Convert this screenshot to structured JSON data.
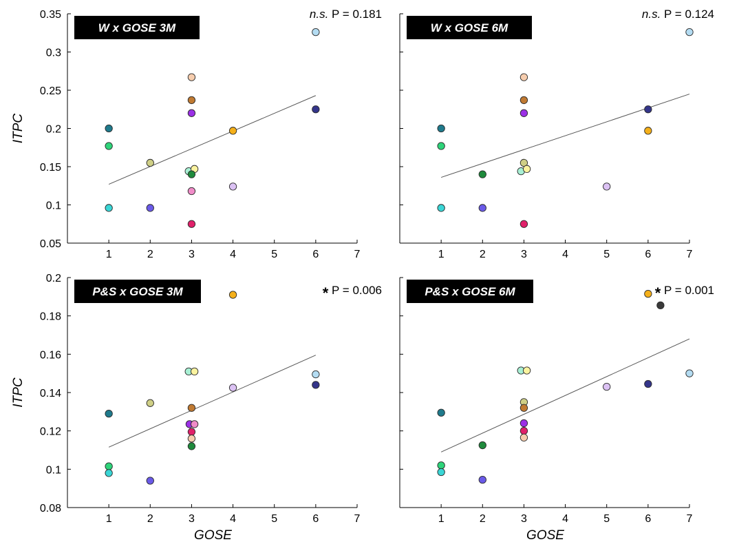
{
  "chart_data": [
    {
      "type": "scatter",
      "title": "W x GOSE 3M",
      "ylabel": "ITPC",
      "xlabel": "",
      "annotation": {
        "prefix": "n.s.",
        "text": "P = 0.181"
      },
      "xlim": [
        0,
        7
      ],
      "ylim": [
        0.05,
        0.35
      ],
      "x_ticks": [
        1,
        2,
        3,
        4,
        5,
        6,
        7
      ],
      "y_ticks": [
        0.05,
        0.1,
        0.15,
        0.2,
        0.25,
        0.3,
        0.35
      ],
      "y_tick_labels": [
        "0.05",
        "0.1",
        "0.15",
        "0.2",
        "0.25",
        "0.3",
        "0.35"
      ],
      "points": [
        {
          "x": 1,
          "y": 0.2,
          "color": "#1f7a8c"
        },
        {
          "x": 1,
          "y": 0.177,
          "color": "#2ed47a"
        },
        {
          "x": 1,
          "y": 0.096,
          "color": "#3ad6d6"
        },
        {
          "x": 2,
          "y": 0.155,
          "color": "#cfcf86"
        },
        {
          "x": 2,
          "y": 0.096,
          "color": "#6a5ae8"
        },
        {
          "x": 3,
          "y": 0.267,
          "color": "#f6cdae"
        },
        {
          "x": 3,
          "y": 0.237,
          "color": "#c07a32"
        },
        {
          "x": 3,
          "y": 0.22,
          "color": "#9b30e6"
        },
        {
          "x": 2.93,
          "y": 0.144,
          "color": "#a8f0d4"
        },
        {
          "x": 3.07,
          "y": 0.147,
          "color": "#fbf3a0"
        },
        {
          "x": 3,
          "y": 0.14,
          "color": "#1f8a3c"
        },
        {
          "x": 3,
          "y": 0.118,
          "color": "#f08cc8"
        },
        {
          "x": 3,
          "y": 0.075,
          "color": "#e0206a"
        },
        {
          "x": 4,
          "y": 0.197,
          "color": "#f5b01a"
        },
        {
          "x": 4,
          "y": 0.124,
          "color": "#dcc2f4"
        },
        {
          "x": 6,
          "y": 0.326,
          "color": "#b4dcf2"
        },
        {
          "x": 6,
          "y": 0.225,
          "color": "#34358a"
        }
      ],
      "fit_line": {
        "x": [
          1,
          6
        ],
        "y": [
          0.127,
          0.243
        ]
      }
    },
    {
      "type": "scatter",
      "title": "W x GOSE 6M",
      "ylabel": "",
      "xlabel": "",
      "annotation": {
        "prefix": "n.s.",
        "text": "P = 0.124"
      },
      "xlim": [
        0,
        7
      ],
      "ylim": [
        0.05,
        0.35
      ],
      "x_ticks": [
        1,
        2,
        3,
        4,
        5,
        6,
        7
      ],
      "y_ticks": [
        0.05,
        0.1,
        0.15,
        0.2,
        0.25,
        0.3,
        0.35
      ],
      "y_tick_labels": [],
      "points": [
        {
          "x": 1,
          "y": 0.2,
          "color": "#1f7a8c"
        },
        {
          "x": 1,
          "y": 0.177,
          "color": "#2ed47a"
        },
        {
          "x": 1,
          "y": 0.096,
          "color": "#3ad6d6"
        },
        {
          "x": 2,
          "y": 0.14,
          "color": "#1f8a3c"
        },
        {
          "x": 2,
          "y": 0.096,
          "color": "#6a5ae8"
        },
        {
          "x": 3,
          "y": 0.267,
          "color": "#f6cdae"
        },
        {
          "x": 3,
          "y": 0.237,
          "color": "#c07a32"
        },
        {
          "x": 3,
          "y": 0.22,
          "color": "#9b30e6"
        },
        {
          "x": 3,
          "y": 0.155,
          "color": "#cfcf86"
        },
        {
          "x": 2.93,
          "y": 0.144,
          "color": "#a8f0d4"
        },
        {
          "x": 3.07,
          "y": 0.147,
          "color": "#fbf3a0"
        },
        {
          "x": 3,
          "y": 0.075,
          "color": "#e0206a"
        },
        {
          "x": 5,
          "y": 0.124,
          "color": "#dcc2f4"
        },
        {
          "x": 6,
          "y": 0.225,
          "color": "#34358a"
        },
        {
          "x": 6,
          "y": 0.197,
          "color": "#f5b01a"
        },
        {
          "x": 7,
          "y": 0.326,
          "color": "#b4dcf2"
        }
      ],
      "fit_line": {
        "x": [
          1,
          7
        ],
        "y": [
          0.136,
          0.245
        ]
      }
    },
    {
      "type": "scatter",
      "title": "P&S x GOSE 3M",
      "ylabel": "ITPC",
      "xlabel": "GOSE",
      "annotation": {
        "prefix": "*",
        "text": "P = 0.006"
      },
      "xlim": [
        0,
        7
      ],
      "ylim": [
        0.08,
        0.2
      ],
      "x_ticks": [
        1,
        2,
        3,
        4,
        5,
        6,
        7
      ],
      "y_ticks": [
        0.08,
        0.1,
        0.12,
        0.14,
        0.16,
        0.18,
        0.2
      ],
      "y_tick_labels": [
        "0.08",
        "0.1",
        "0.12",
        "0.14",
        "0.16",
        "0.18",
        "0.2"
      ],
      "points": [
        {
          "x": 1,
          "y": 0.129,
          "color": "#1f7a8c"
        },
        {
          "x": 1,
          "y": 0.1015,
          "color": "#2ed47a"
        },
        {
          "x": 1,
          "y": 0.098,
          "color": "#3ad6d6"
        },
        {
          "x": 2,
          "y": 0.1345,
          "color": "#cfcf86"
        },
        {
          "x": 2,
          "y": 0.094,
          "color": "#6a5ae8"
        },
        {
          "x": 2.93,
          "y": 0.151,
          "color": "#a8f0d4"
        },
        {
          "x": 3.07,
          "y": 0.151,
          "color": "#fbf3a0"
        },
        {
          "x": 3,
          "y": 0.132,
          "color": "#c07a32"
        },
        {
          "x": 2.95,
          "y": 0.1235,
          "color": "#9b30e6"
        },
        {
          "x": 3.07,
          "y": 0.1235,
          "color": "#f08cc8"
        },
        {
          "x": 3,
          "y": 0.1195,
          "color": "#e0206a"
        },
        {
          "x": 3,
          "y": 0.116,
          "color": "#f6cdae"
        },
        {
          "x": 3,
          "y": 0.112,
          "color": "#1f8a3c"
        },
        {
          "x": 4,
          "y": 0.191,
          "color": "#f5b01a"
        },
        {
          "x": 4,
          "y": 0.1425,
          "color": "#dcc2f4"
        },
        {
          "x": 6,
          "y": 0.1495,
          "color": "#b4dcf2"
        },
        {
          "x": 6,
          "y": 0.144,
          "color": "#34358a"
        }
      ],
      "fit_line": {
        "x": [
          1,
          6
        ],
        "y": [
          0.1115,
          0.1595
        ]
      }
    },
    {
      "type": "scatter",
      "title": "P&S x GOSE 6M",
      "ylabel": "",
      "xlabel": "GOSE",
      "annotation": {
        "prefix": "*",
        "text": "P = 0.001"
      },
      "xlim": [
        0,
        7
      ],
      "ylim": [
        0.08,
        0.2
      ],
      "x_ticks": [
        1,
        2,
        3,
        4,
        5,
        6,
        7
      ],
      "y_ticks": [
        0.08,
        0.1,
        0.12,
        0.14,
        0.16,
        0.18,
        0.2
      ],
      "y_tick_labels": [],
      "points": [
        {
          "x": 1,
          "y": 0.1295,
          "color": "#1f7a8c"
        },
        {
          "x": 1,
          "y": 0.102,
          "color": "#2ed47a"
        },
        {
          "x": 1,
          "y": 0.0985,
          "color": "#3ad6d6"
        },
        {
          "x": 2,
          "y": 0.1125,
          "color": "#1f8a3c"
        },
        {
          "x": 2,
          "y": 0.0945,
          "color": "#6a5ae8"
        },
        {
          "x": 2.93,
          "y": 0.1515,
          "color": "#a8f0d4"
        },
        {
          "x": 3.07,
          "y": 0.1515,
          "color": "#fbf3a0"
        },
        {
          "x": 3,
          "y": 0.135,
          "color": "#cfcf86"
        },
        {
          "x": 3,
          "y": 0.132,
          "color": "#c07a32"
        },
        {
          "x": 3,
          "y": 0.124,
          "color": "#9b30e6"
        },
        {
          "x": 3,
          "y": 0.12,
          "color": "#e0206a"
        },
        {
          "x": 3,
          "y": 0.1165,
          "color": "#f6cdae"
        },
        {
          "x": 5,
          "y": 0.143,
          "color": "#dcc2f4"
        },
        {
          "x": 6,
          "y": 0.1915,
          "color": "#f5b01a"
        },
        {
          "x": 6.3,
          "y": 0.1855,
          "color": "#3a3a3a"
        },
        {
          "x": 6,
          "y": 0.1445,
          "color": "#34358a"
        },
        {
          "x": 7,
          "y": 0.15,
          "color": "#b4dcf2"
        }
      ],
      "fit_line": {
        "x": [
          1,
          7
        ],
        "y": [
          0.109,
          0.168
        ]
      }
    }
  ]
}
